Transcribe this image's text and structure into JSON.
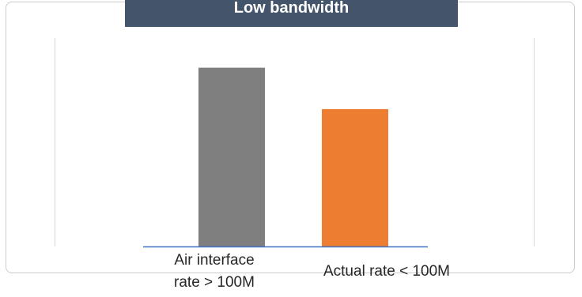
{
  "chart_data": {
    "type": "bar",
    "title": "Low bandwidth",
    "categories": [
      "Air interface rate > 100M",
      "Actual rate < 100M"
    ],
    "category_lines": [
      [
        "Air interface",
        "rate > 100M"
      ],
      [
        "Actual rate < 100M"
      ]
    ],
    "values": [
      82,
      63
    ],
    "colors": [
      "#7f7f7f",
      "#ed7d31"
    ],
    "axis_color": "#4472c4",
    "ylim": [
      0,
      100
    ],
    "grid": false
  }
}
